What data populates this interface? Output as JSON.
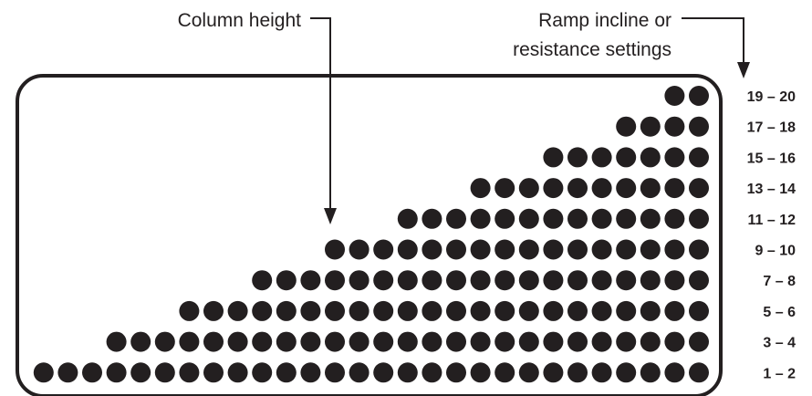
{
  "callouts": {
    "column_height": "Column height",
    "ramp_line1": "Ramp incline or",
    "ramp_line2": "resistance settings"
  },
  "levels": [
    {
      "label": "19 – 20",
      "dots": 2
    },
    {
      "label": "17 – 18",
      "dots": 4
    },
    {
      "label": "15 – 16",
      "dots": 7
    },
    {
      "label": "13 – 14",
      "dots": 10
    },
    {
      "label": "11 – 12",
      "dots": 13
    },
    {
      "label": "9 – 10",
      "dots": 16
    },
    {
      "label": "7 – 8",
      "dots": 19
    },
    {
      "label": "5 – 6",
      "dots": 22
    },
    {
      "label": "3 – 4",
      "dots": 25
    },
    {
      "label": "1 – 2",
      "dots": 28
    }
  ],
  "colors": {
    "dot": "#231f20",
    "frame": "#231f20",
    "text": "#231f20"
  }
}
